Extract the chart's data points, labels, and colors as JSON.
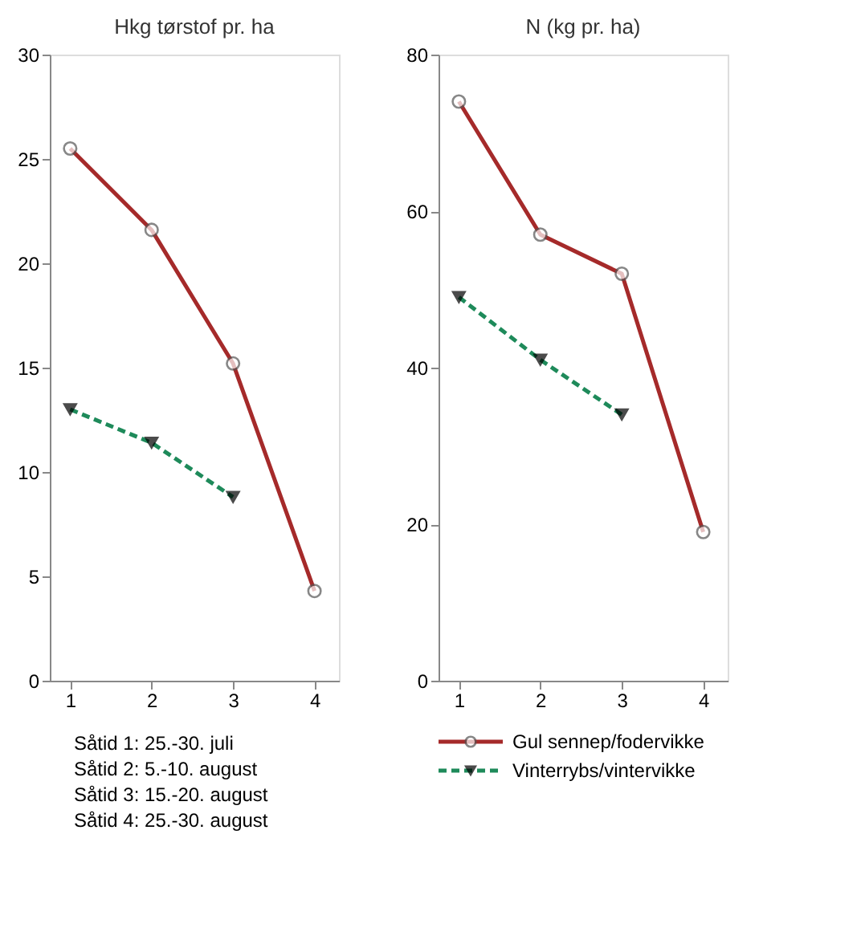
{
  "chart_data": [
    {
      "type": "line",
      "title": "Hkg tørstof pr. ha",
      "x": [
        1,
        2,
        3,
        4
      ],
      "xlim": [
        0.75,
        4.3
      ],
      "xticks": [
        1,
        2,
        3,
        4
      ],
      "ylim": [
        0,
        30
      ],
      "yticks": [
        0,
        5,
        10,
        15,
        20,
        25,
        30
      ],
      "grid": false,
      "series": [
        {
          "color": "#a52a2a",
          "marker": "circle",
          "line_style": "solid",
          "values": [
            25.5,
            21.6,
            15.2,
            4.3
          ]
        },
        {
          "color": "#1e8a5a",
          "marker": "triangle",
          "line_style": "dashed",
          "values": [
            13.0,
            11.4,
            8.8,
            null
          ]
        }
      ],
      "annotations": [
        "Såtid 1: 25.-30. juli",
        "Såtid 2:   5.-10. august",
        "Såtid 3: 15.-20. august",
        "Såtid 4: 25.-30. august"
      ]
    },
    {
      "type": "line",
      "title": "N (kg pr. ha)",
      "x": [
        1,
        2,
        3,
        4
      ],
      "xlim": [
        0.75,
        4.3
      ],
      "xticks": [
        1,
        2,
        3,
        4
      ],
      "ylim": [
        0,
        80
      ],
      "yticks": [
        0,
        20,
        40,
        60,
        80
      ],
      "grid": false,
      "legend": "bottom",
      "series": [
        {
          "name": "Gul sennep/fodervikke",
          "color": "#a52a2a",
          "marker": "circle",
          "line_style": "solid",
          "values": [
            74,
            57,
            52,
            19
          ]
        },
        {
          "name": "Vinterrybs/vintervikke",
          "color": "#1e8a5a",
          "marker": "triangle",
          "line_style": "dashed",
          "values": [
            49,
            41,
            34,
            null
          ]
        }
      ]
    }
  ]
}
